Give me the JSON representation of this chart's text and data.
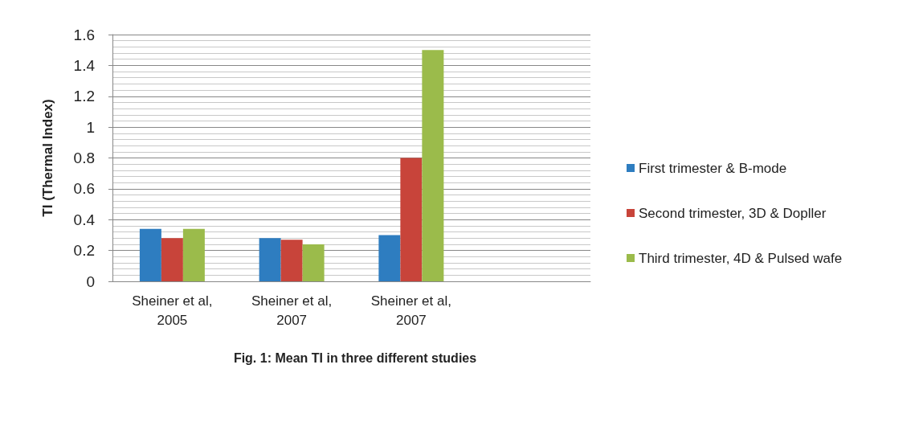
{
  "chart_data": {
    "type": "bar",
    "title": "Fig. 1: Mean TI in three different studies",
    "ylabel": "TI (Thermal Index)",
    "categories": [
      "Sheiner et al,2005",
      "Sheiner et al,2007",
      "Sheiner et al,2007",
      null
    ],
    "series": [
      {
        "name": "First trimester & B-mode",
        "color": "#2e7dc0",
        "values": [
          0.34,
          0.28,
          0.3,
          null
        ]
      },
      {
        "name": "Second trimester, 3D & Dopller",
        "color": "#c8443a",
        "values": [
          0.28,
          0.27,
          0.8,
          null
        ]
      },
      {
        "name": "Third trimester, 4D & Pulsed wafe",
        "color": "#9bbb4b",
        "values": [
          0.34,
          0.24,
          1.5,
          null
        ]
      }
    ],
    "ylim": [
      0,
      1.6
    ],
    "yticks": [
      0,
      0.2,
      0.4,
      0.6,
      0.8,
      1,
      1.2,
      1.4,
      1.6
    ],
    "grid": "y",
    "legend": "right"
  }
}
